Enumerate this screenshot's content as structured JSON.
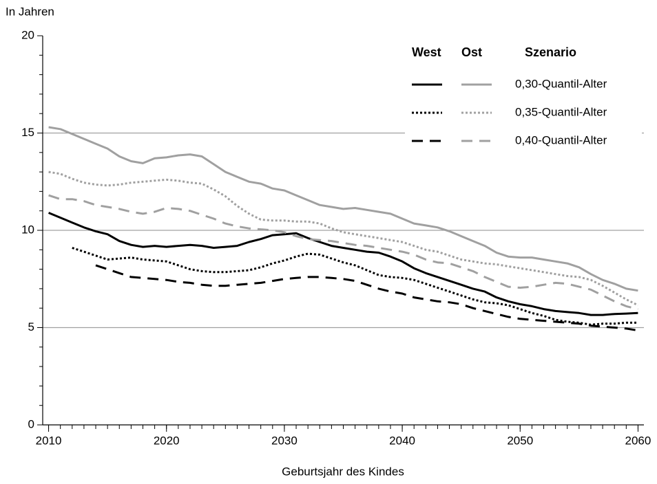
{
  "chart_data": {
    "type": "line",
    "y_label": "In Jahren",
    "x_label": "Geburtsjahr des Kindes",
    "xlim": [
      2009.5,
      2060.5
    ],
    "xticks": [
      2010,
      2020,
      2030,
      2040,
      2050,
      2060
    ],
    "ylim": [
      0,
      20
    ],
    "yticks": [
      0,
      5,
      10,
      15,
      20
    ],
    "yminorticks": [
      1,
      2,
      3,
      4,
      6,
      7,
      8,
      9,
      11,
      12,
      13,
      14,
      16,
      17,
      18,
      19
    ],
    "grid": true,
    "grid_color": "#a0a0a0",
    "x": [
      2010,
      2011,
      2012,
      2013,
      2014,
      2015,
      2016,
      2017,
      2018,
      2019,
      2020,
      2021,
      2022,
      2023,
      2024,
      2025,
      2026,
      2027,
      2028,
      2029,
      2030,
      2031,
      2032,
      2033,
      2034,
      2035,
      2036,
      2037,
      2038,
      2039,
      2040,
      2041,
      2042,
      2043,
      2044,
      2045,
      2046,
      2047,
      2048,
      2049,
      2050,
      2051,
      2052,
      2053,
      2054,
      2055,
      2056,
      2057,
      2058,
      2059,
      2060
    ],
    "legend_title": "Szenario",
    "scenarios": [
      {
        "name": "0,30-Quantil-Alter",
        "dash": "solid"
      },
      {
        "name": "0,35-Quantil-Alter",
        "dash": "dotted"
      },
      {
        "name": "0,40-Quantil-Alter",
        "dash": "dashed"
      }
    ],
    "regions": [
      {
        "name": "West",
        "color": "#000000",
        "series": [
          {
            "values": [
              10.9,
              10.65,
              10.4,
              10.15,
              9.95,
              9.8,
              9.45,
              9.25,
              9.15,
              9.2,
              9.15,
              9.2,
              9.25,
              9.2,
              9.1,
              9.15,
              9.2,
              9.4,
              9.55,
              9.75,
              9.8,
              9.85,
              9.6,
              9.4,
              9.2,
              9.1,
              9.0,
              8.9,
              8.85,
              8.65,
              8.4,
              8.05,
              7.8,
              7.6,
              7.4,
              7.2,
              7.0,
              6.85,
              6.55,
              6.35,
              6.2,
              6.1,
              5.95,
              5.85,
              5.8,
              5.75,
              5.65,
              5.65,
              5.7,
              5.72,
              5.75
            ]
          },
          {
            "values": [
              null,
              null,
              9.1,
              8.9,
              8.7,
              8.5,
              8.55,
              8.6,
              8.5,
              8.45,
              8.4,
              8.2,
              8.0,
              7.9,
              7.85,
              7.85,
              7.9,
              7.95,
              8.1,
              8.3,
              8.45,
              8.65,
              8.8,
              8.75,
              8.55,
              8.35,
              8.2,
              7.95,
              7.7,
              7.6,
              7.55,
              7.45,
              7.25,
              7.05,
              6.85,
              6.65,
              6.45,
              6.3,
              6.25,
              6.15,
              5.95,
              5.75,
              5.6,
              5.4,
              5.3,
              5.25,
              5.15,
              5.2,
              5.2,
              5.25,
              5.25
            ]
          },
          {
            "values": [
              null,
              null,
              null,
              null,
              8.2,
              8.0,
              7.8,
              7.6,
              7.55,
              7.5,
              7.45,
              7.35,
              7.3,
              7.2,
              7.15,
              7.15,
              7.2,
              7.25,
              7.3,
              7.4,
              7.5,
              7.55,
              7.6,
              7.6,
              7.55,
              7.5,
              7.4,
              7.2,
              7.0,
              6.85,
              6.75,
              6.55,
              6.45,
              6.35,
              6.3,
              6.2,
              6.0,
              5.85,
              5.7,
              5.55,
              5.45,
              5.4,
              5.35,
              5.3,
              5.25,
              5.2,
              5.1,
              5.05,
              5.0,
              4.95,
              4.85
            ]
          }
        ]
      },
      {
        "name": "Ost",
        "color": "#a0a0a0",
        "series": [
          {
            "values": [
              15.3,
              15.2,
              14.95,
              14.7,
              14.45,
              14.2,
              13.8,
              13.55,
              13.45,
              13.7,
              13.75,
              13.85,
              13.9,
              13.8,
              13.4,
              13.0,
              12.75,
              12.5,
              12.4,
              12.15,
              12.05,
              11.8,
              11.55,
              11.3,
              11.2,
              11.1,
              11.15,
              11.05,
              10.95,
              10.85,
              10.6,
              10.35,
              10.25,
              10.15,
              9.95,
              9.7,
              9.45,
              9.2,
              8.85,
              8.65,
              8.6,
              8.6,
              8.5,
              8.4,
              8.3,
              8.1,
              7.75,
              7.45,
              7.25,
              7.0,
              6.9
            ]
          },
          {
            "values": [
              13.0,
              12.9,
              12.65,
              12.45,
              12.35,
              12.3,
              12.35,
              12.45,
              12.5,
              12.55,
              12.6,
              12.55,
              12.45,
              12.4,
              12.1,
              11.75,
              11.25,
              10.85,
              10.55,
              10.5,
              10.5,
              10.45,
              10.45,
              10.35,
              10.1,
              9.9,
              9.8,
              9.7,
              9.6,
              9.5,
              9.4,
              9.2,
              9.0,
              8.9,
              8.7,
              8.5,
              8.4,
              8.3,
              8.25,
              8.15,
              8.05,
              7.95,
              7.85,
              7.75,
              7.65,
              7.6,
              7.45,
              7.15,
              6.8,
              6.45,
              6.15
            ]
          },
          {
            "values": [
              11.8,
              11.6,
              11.6,
              11.5,
              11.3,
              11.2,
              11.1,
              10.95,
              10.85,
              10.95,
              11.15,
              11.1,
              11.0,
              10.8,
              10.6,
              10.35,
              10.2,
              10.1,
              10.05,
              10.0,
              9.9,
              9.7,
              9.55,
              9.5,
              9.45,
              9.35,
              9.25,
              9.2,
              9.1,
              9.0,
              8.9,
              8.75,
              8.5,
              8.35,
              8.3,
              8.1,
              7.9,
              7.6,
              7.35,
              7.1,
              7.05,
              7.1,
              7.2,
              7.3,
              7.25,
              7.1,
              6.95,
              6.65,
              6.35,
              6.1,
              5.95
            ]
          }
        ]
      }
    ]
  }
}
